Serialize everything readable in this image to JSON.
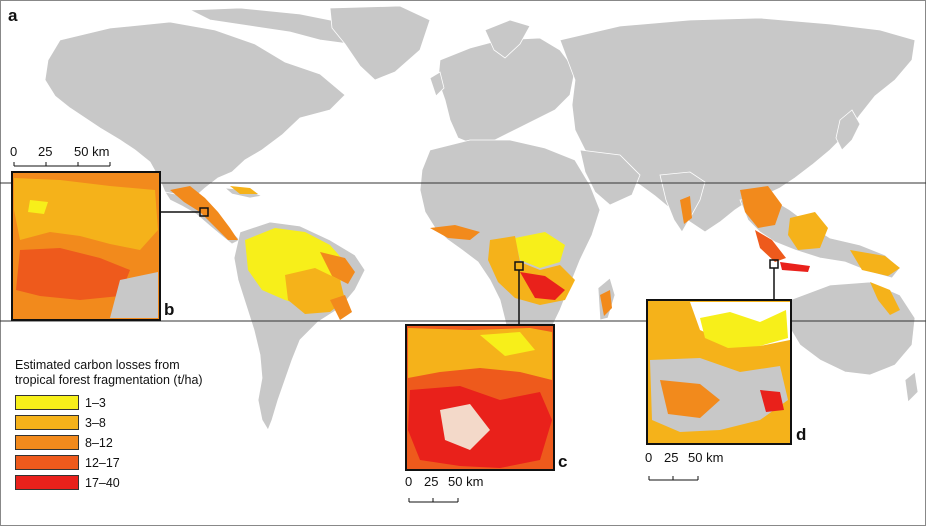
{
  "figure": {
    "panel_a": "a",
    "panel_b": "b",
    "panel_c": "c",
    "panel_d": "d"
  },
  "scale_bars": {
    "b": [
      "0",
      "25",
      "50 km"
    ],
    "c": [
      "0",
      "25",
      "50 km"
    ],
    "d": [
      "0",
      "25",
      "50 km"
    ]
  },
  "legend": {
    "title_line1": "Estimated carbon losses from",
    "title_line2": "tropical forest fragmentation (t/ha)",
    "items": [
      {
        "label": "1–3",
        "color": "#f7ef1a"
      },
      {
        "label": "3–8",
        "color": "#f5b21a"
      },
      {
        "label": "8–12",
        "color": "#f28a1c"
      },
      {
        "label": "12–17",
        "color": "#ee5a1c"
      },
      {
        "label": "17–40",
        "color": "#e9211b"
      }
    ]
  },
  "colors": {
    "land": "#c8c8c8",
    "land_border": "#ffffff",
    "ocean": "#ffffff",
    "tropic_line": "#333333"
  }
}
